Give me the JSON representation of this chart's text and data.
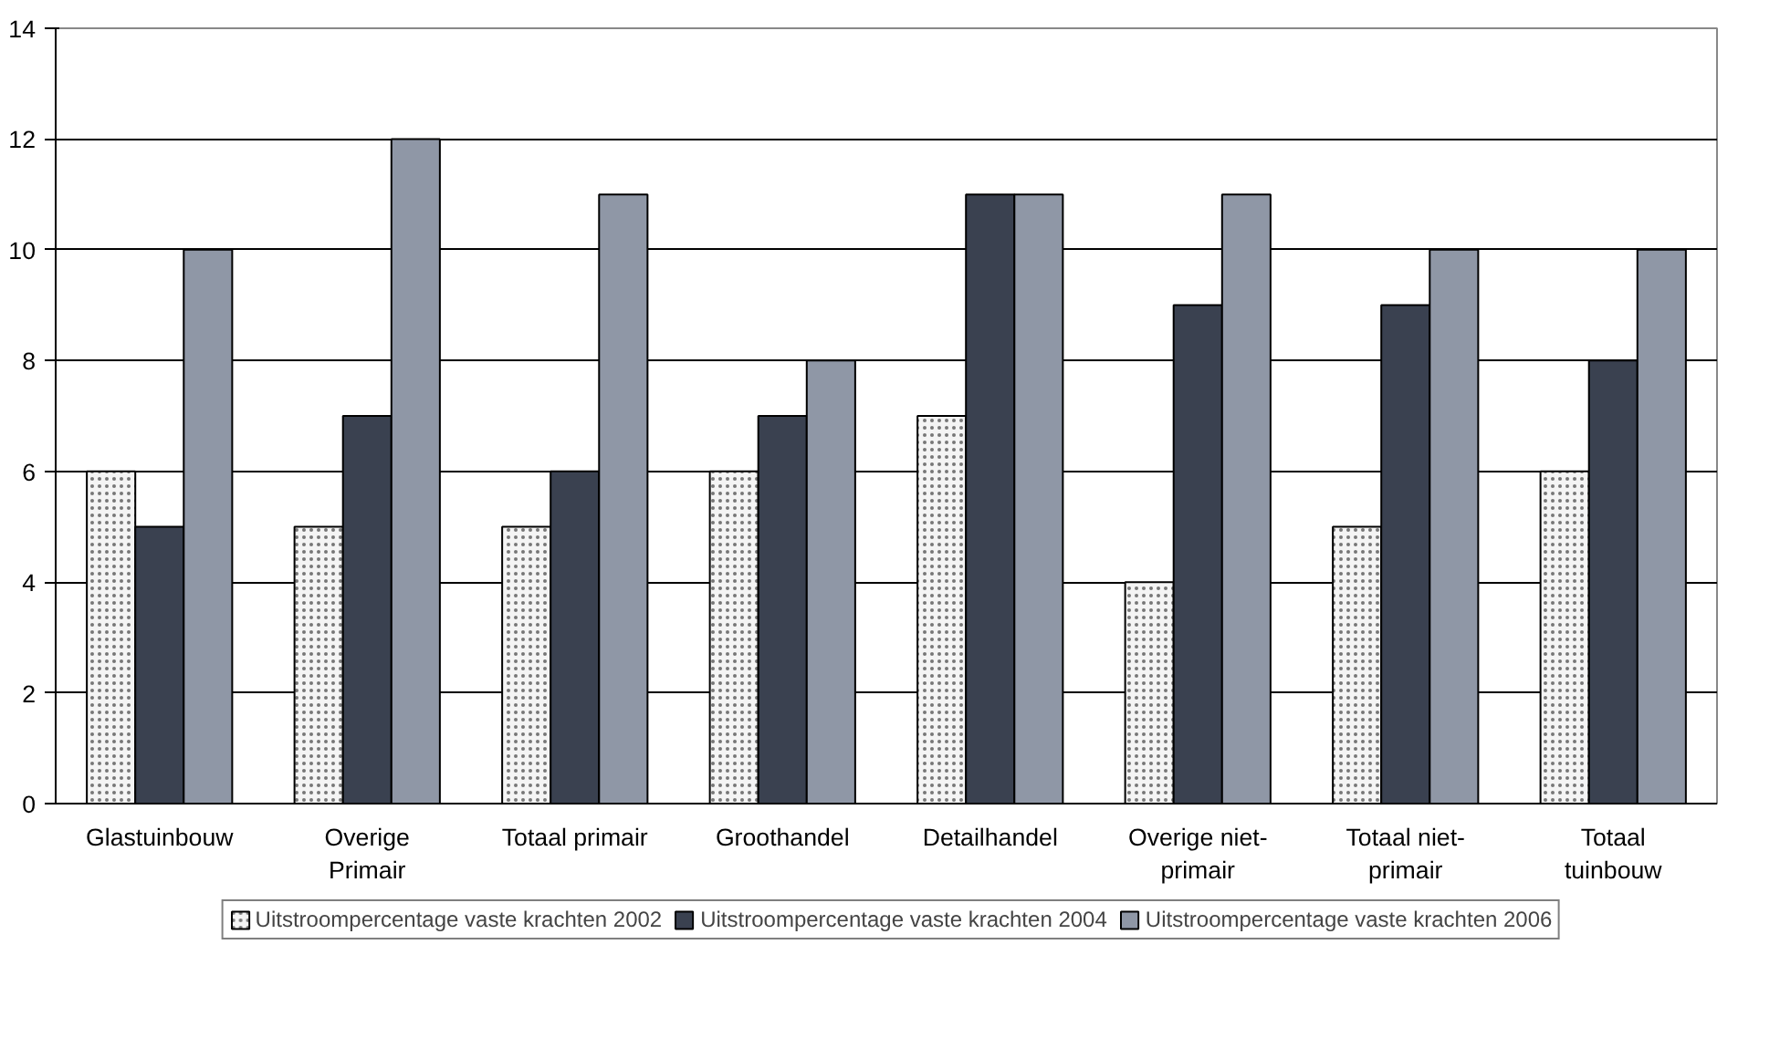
{
  "chart_data": {
    "type": "bar",
    "categories": [
      "Glastuinbouw",
      "Overige\nPrimair",
      "Totaal primair",
      "Groothandel",
      "Detailhandel",
      "Overige niet-\nprimair",
      "Totaal niet-\nprimair",
      "Totaal\ntuinbouw"
    ],
    "series": [
      {
        "name": "Uitstroompercentage vaste krachten 2002",
        "color": "#f4f4f4",
        "values": [
          6,
          5,
          5,
          6,
          7,
          4,
          5,
          6
        ]
      },
      {
        "name": "Uitstroompercentage vaste krachten 2004",
        "color": "#3a4150",
        "values": [
          5,
          7,
          6,
          7,
          11,
          9,
          9,
          8
        ]
      },
      {
        "name": "Uitstroompercentage vaste krachten 2006",
        "color": "#8f97a6",
        "values": [
          10,
          12,
          11,
          8,
          11,
          11,
          10,
          10
        ]
      }
    ],
    "ylim": [
      0,
      14
    ],
    "yticks": [
      0,
      2,
      4,
      6,
      8,
      10,
      12,
      14
    ],
    "grid": "y",
    "legend": "bottom"
  }
}
